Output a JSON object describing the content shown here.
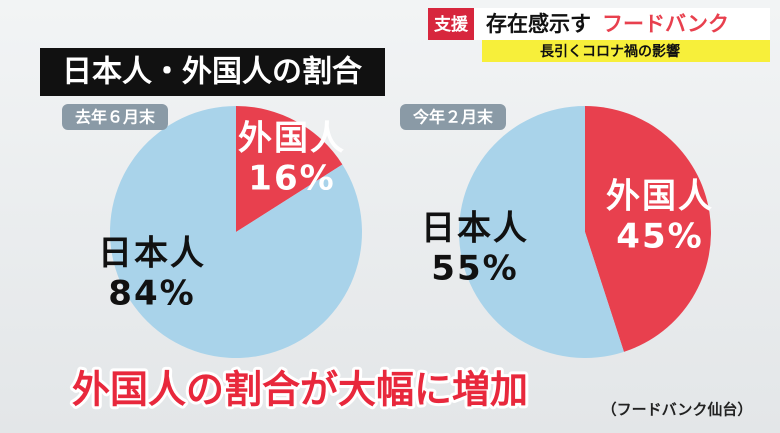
{
  "header": {
    "tag": "支援",
    "headline_black": "存在感示す",
    "headline_red": "フードバンク",
    "subline": "長引くコロナ禍の影響"
  },
  "title": "日本人・外国人の割合",
  "caption": "外国人の割合が大幅に増加",
  "source": "（フードバンク仙台）",
  "chart_data": [
    {
      "type": "pie",
      "subtitle": "去年６月末",
      "categories": [
        "外国人",
        "日本人"
      ],
      "values": [
        16,
        84
      ],
      "value_labels": [
        "16%",
        "84%"
      ],
      "colors": [
        "#e8404e",
        "#a9d3ea"
      ]
    },
    {
      "type": "pie",
      "subtitle": "今年２月末",
      "categories": [
        "外国人",
        "日本人"
      ],
      "values": [
        45,
        55
      ],
      "value_labels": [
        "45%",
        "55%"
      ],
      "colors": [
        "#e8404e",
        "#a9d3ea"
      ]
    }
  ]
}
